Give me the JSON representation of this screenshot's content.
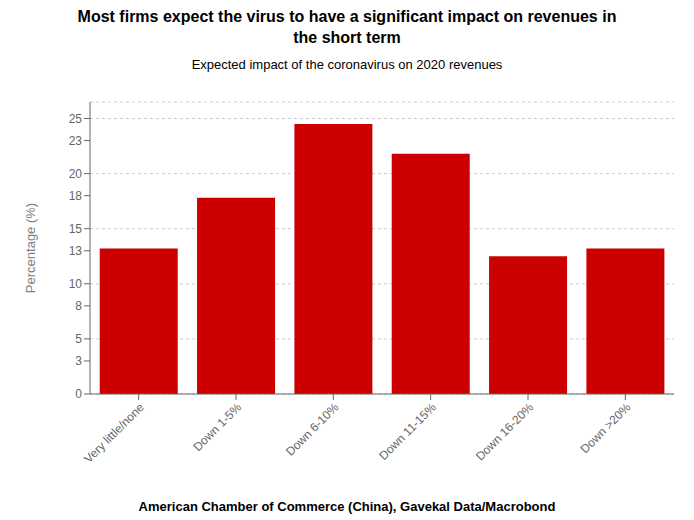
{
  "chart_data": {
    "type": "bar",
    "title": "Most firms expect the virus to have a significant impact on revenues in\nthe short term",
    "subtitle": "Expected impact of the coronavirus on 2020 revenues",
    "source": "American Chamber of Commerce (China), Gavekal Data/Macrobond",
    "categories": [
      "Very little/none",
      "Down 1-5%",
      "Down 6-10%",
      "Down 11-15%",
      "Down 16-20%",
      "Down >20%"
    ],
    "values": [
      13.2,
      17.8,
      24.5,
      21.8,
      12.5,
      13.2
    ],
    "color": "#cc0000",
    "ylabel": "Percentage (%)",
    "ylim": [
      0,
      26.5
    ],
    "yticks": [
      0,
      3,
      5,
      8,
      10,
      13,
      15,
      18,
      20,
      23,
      25
    ],
    "grid": true
  }
}
